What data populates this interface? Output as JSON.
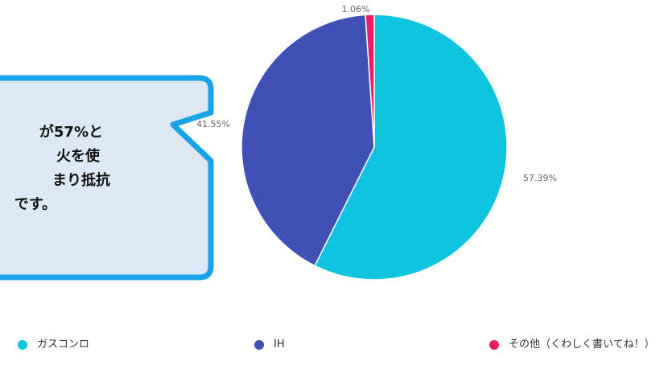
{
  "chart_data": {
    "type": "pie",
    "categories": [
      "ガスコンロ",
      "IH",
      "その他（くわしく書いてね！）"
    ],
    "values": [
      57.39,
      41.55,
      1.06
    ],
    "value_labels": [
      "57.39%",
      "41.55%",
      "1.06%"
    ],
    "colors": [
      "#0fc4de",
      "#3f51b5",
      "#e91e63"
    ],
    "annotation": [
      "が57%と",
      "火を使",
      "まり抵抗",
      "です。"
    ]
  }
}
